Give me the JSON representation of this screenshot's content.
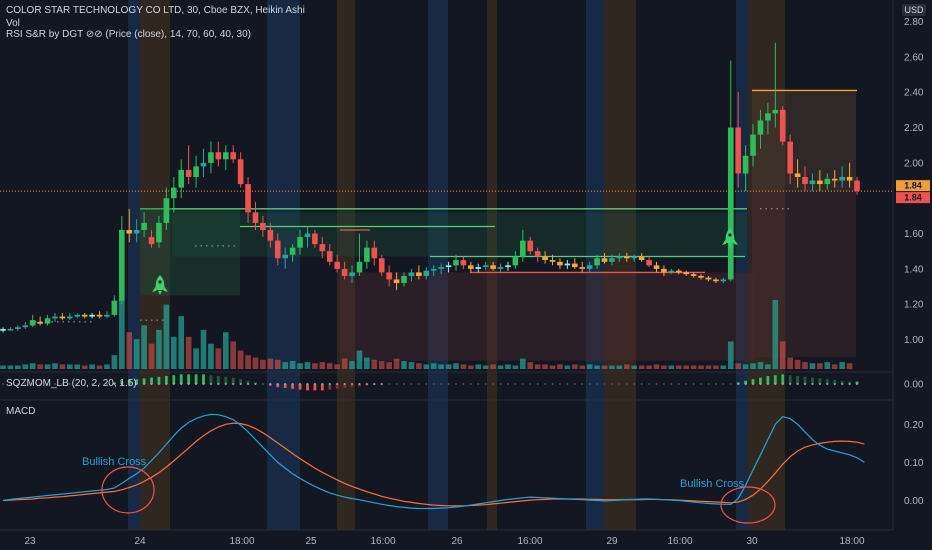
{
  "header": {
    "title": "COLOR STAR TECHNOLOGY CO LTD, 30, Cboe BZX, Heikin Ashi",
    "vol_label": "Vol",
    "rsi_label": "RSI S&R by DGT ⊘⊘ (Price (close), 14, 70, 60, 40, 30)",
    "sqz_label": "SQZMOM_LB (20, 2, 20, 1.5)",
    "macd_label": "MACD"
  },
  "price_axis": {
    "currency": "USD",
    "ticks": [
      "2.80",
      "2.60",
      "2.40",
      "2.20",
      "2.00",
      "1.80",
      "1.60",
      "1.40",
      "1.20",
      "1.00"
    ]
  },
  "price_tags": [
    "1.84",
    "1.84"
  ],
  "sqz_axis": {
    "ticks": [
      "0.00"
    ]
  },
  "macd_axis": {
    "ticks": [
      "0.20",
      "0.10",
      "0.00"
    ]
  },
  "time_axis": {
    "ticks": [
      "23",
      "24",
      "18:00",
      "25",
      "16:00",
      "26",
      "16:00",
      "29",
      "16:00",
      "30",
      "18:00"
    ]
  },
  "annotations": [
    "Bullish Cross",
    "Bullish Cross"
  ],
  "colors": {
    "background": "#131722",
    "up": "#26a69a",
    "down": "#ef5350",
    "up_bright": "#2ebd5a",
    "down_orange": "#f7a637",
    "ha_light": "#8ff0e8",
    "macd": "#22a3d6",
    "signal": "#ff6d3a",
    "band_blue": "#1e3a5f",
    "band_orange": "#4a3520",
    "current_price": "#ef9c3a"
  },
  "chart_data": {
    "type": "candlestick",
    "title": "COLOR STAR TECHNOLOGY CO LTD, 30, Cboe BZX, Heikin Ashi",
    "ylim": [
      0.86,
      2.88
    ],
    "candles": [
      {
        "o": 1.05,
        "h": 1.07,
        "l": 1.04,
        "c": 1.06
      },
      {
        "o": 1.06,
        "h": 1.07,
        "l": 1.05,
        "c": 1.06
      },
      {
        "o": 1.06,
        "h": 1.08,
        "l": 1.05,
        "c": 1.07
      },
      {
        "o": 1.07,
        "h": 1.1,
        "l": 1.06,
        "c": 1.08
      },
      {
        "o": 1.08,
        "h": 1.14,
        "l": 1.07,
        "c": 1.11
      },
      {
        "o": 1.1,
        "h": 1.13,
        "l": 1.08,
        "c": 1.09
      },
      {
        "o": 1.09,
        "h": 1.14,
        "l": 1.08,
        "c": 1.12
      },
      {
        "o": 1.12,
        "h": 1.15,
        "l": 1.1,
        "c": 1.13
      },
      {
        "o": 1.13,
        "h": 1.15,
        "l": 1.11,
        "c": 1.12
      },
      {
        "o": 1.12,
        "h": 1.15,
        "l": 1.11,
        "c": 1.13
      },
      {
        "o": 1.13,
        "h": 1.15,
        "l": 1.12,
        "c": 1.14
      },
      {
        "o": 1.14,
        "h": 1.15,
        "l": 1.12,
        "c": 1.13
      },
      {
        "o": 1.13,
        "h": 1.15,
        "l": 1.12,
        "c": 1.14
      },
      {
        "o": 1.14,
        "h": 1.16,
        "l": 1.12,
        "c": 1.13
      },
      {
        "o": 1.13,
        "h": 1.16,
        "l": 1.12,
        "c": 1.14
      },
      {
        "o": 1.14,
        "h": 1.25,
        "l": 1.13,
        "c": 1.22
      },
      {
        "o": 1.22,
        "h": 1.7,
        "l": 1.2,
        "c": 1.62
      },
      {
        "o": 1.62,
        "h": 1.74,
        "l": 1.55,
        "c": 1.6
      },
      {
        "o": 1.6,
        "h": 1.68,
        "l": 1.55,
        "c": 1.62
      },
      {
        "o": 1.62,
        "h": 1.72,
        "l": 1.58,
        "c": 1.66
      },
      {
        "o": 1.58,
        "h": 1.62,
        "l": 1.52,
        "c": 1.54
      },
      {
        "o": 1.55,
        "h": 1.7,
        "l": 1.52,
        "c": 1.66
      },
      {
        "o": 1.66,
        "h": 1.86,
        "l": 1.62,
        "c": 1.8
      },
      {
        "o": 1.8,
        "h": 1.92,
        "l": 1.72,
        "c": 1.86
      },
      {
        "o": 1.86,
        "h": 2.02,
        "l": 1.8,
        "c": 1.96
      },
      {
        "o": 1.96,
        "h": 2.1,
        "l": 1.88,
        "c": 1.92
      },
      {
        "o": 1.92,
        "h": 2.04,
        "l": 1.86,
        "c": 1.98
      },
      {
        "o": 1.98,
        "h": 2.08,
        "l": 1.92,
        "c": 2.0
      },
      {
        "o": 2.0,
        "h": 2.12,
        "l": 1.94,
        "c": 2.06
      },
      {
        "o": 2.06,
        "h": 2.12,
        "l": 1.98,
        "c": 2.02
      },
      {
        "o": 2.02,
        "h": 2.1,
        "l": 1.96,
        "c": 2.06
      },
      {
        "o": 2.06,
        "h": 2.1,
        "l": 2.0,
        "c": 2.02
      },
      {
        "o": 2.02,
        "h": 2.06,
        "l": 1.86,
        "c": 1.88
      },
      {
        "o": 1.88,
        "h": 1.92,
        "l": 1.66,
        "c": 1.72
      },
      {
        "o": 1.72,
        "h": 1.78,
        "l": 1.62,
        "c": 1.66
      },
      {
        "o": 1.66,
        "h": 1.7,
        "l": 1.58,
        "c": 1.62
      },
      {
        "o": 1.62,
        "h": 1.66,
        "l": 1.52,
        "c": 1.56
      },
      {
        "o": 1.56,
        "h": 1.6,
        "l": 1.42,
        "c": 1.46
      },
      {
        "o": 1.46,
        "h": 1.52,
        "l": 1.4,
        "c": 1.48
      },
      {
        "o": 1.48,
        "h": 1.54,
        "l": 1.44,
        "c": 1.52
      },
      {
        "o": 1.52,
        "h": 1.62,
        "l": 1.48,
        "c": 1.58
      },
      {
        "o": 1.58,
        "h": 1.64,
        "l": 1.52,
        "c": 1.6
      },
      {
        "o": 1.6,
        "h": 1.62,
        "l": 1.52,
        "c": 1.54
      },
      {
        "o": 1.54,
        "h": 1.58,
        "l": 1.46,
        "c": 1.5
      },
      {
        "o": 1.5,
        "h": 1.54,
        "l": 1.42,
        "c": 1.44
      },
      {
        "o": 1.44,
        "h": 1.48,
        "l": 1.38,
        "c": 1.4
      },
      {
        "o": 1.4,
        "h": 1.44,
        "l": 1.34,
        "c": 1.36
      },
      {
        "o": 1.36,
        "h": 1.42,
        "l": 1.32,
        "c": 1.38
      },
      {
        "o": 1.38,
        "h": 1.6,
        "l": 1.36,
        "c": 1.44
      },
      {
        "o": 1.44,
        "h": 1.56,
        "l": 1.4,
        "c": 1.52
      },
      {
        "o": 1.52,
        "h": 1.56,
        "l": 1.42,
        "c": 1.46
      },
      {
        "o": 1.46,
        "h": 1.48,
        "l": 1.36,
        "c": 1.38
      },
      {
        "o": 1.38,
        "h": 1.42,
        "l": 1.3,
        "c": 1.34
      },
      {
        "o": 1.34,
        "h": 1.38,
        "l": 1.28,
        "c": 1.32
      },
      {
        "o": 1.32,
        "h": 1.38,
        "l": 1.3,
        "c": 1.36
      },
      {
        "o": 1.36,
        "h": 1.4,
        "l": 1.33,
        "c": 1.38
      },
      {
        "o": 1.38,
        "h": 1.42,
        "l": 1.34,
        "c": 1.36
      },
      {
        "o": 1.36,
        "h": 1.41,
        "l": 1.34,
        "c": 1.39
      },
      {
        "o": 1.39,
        "h": 1.42,
        "l": 1.36,
        "c": 1.4
      },
      {
        "o": 1.4,
        "h": 1.43,
        "l": 1.37,
        "c": 1.41
      },
      {
        "o": 1.41,
        "h": 1.44,
        "l": 1.38,
        "c": 1.42
      },
      {
        "o": 1.42,
        "h": 1.48,
        "l": 1.39,
        "c": 1.45
      },
      {
        "o": 1.45,
        "h": 1.47,
        "l": 1.4,
        "c": 1.42
      },
      {
        "o": 1.42,
        "h": 1.44,
        "l": 1.38,
        "c": 1.4
      },
      {
        "o": 1.4,
        "h": 1.43,
        "l": 1.38,
        "c": 1.41
      },
      {
        "o": 1.41,
        "h": 1.44,
        "l": 1.39,
        "c": 1.42
      },
      {
        "o": 1.42,
        "h": 1.44,
        "l": 1.39,
        "c": 1.4
      },
      {
        "o": 1.4,
        "h": 1.43,
        "l": 1.38,
        "c": 1.41
      },
      {
        "o": 1.41,
        "h": 1.44,
        "l": 1.39,
        "c": 1.42
      },
      {
        "o": 1.42,
        "h": 1.5,
        "l": 1.4,
        "c": 1.47
      },
      {
        "o": 1.47,
        "h": 1.62,
        "l": 1.44,
        "c": 1.56
      },
      {
        "o": 1.56,
        "h": 1.58,
        "l": 1.48,
        "c": 1.5
      },
      {
        "o": 1.5,
        "h": 1.52,
        "l": 1.44,
        "c": 1.47
      },
      {
        "o": 1.47,
        "h": 1.5,
        "l": 1.43,
        "c": 1.45
      },
      {
        "o": 1.45,
        "h": 1.48,
        "l": 1.42,
        "c": 1.44
      },
      {
        "o": 1.44,
        "h": 1.46,
        "l": 1.4,
        "c": 1.42
      },
      {
        "o": 1.42,
        "h": 1.45,
        "l": 1.4,
        "c": 1.43
      },
      {
        "o": 1.43,
        "h": 1.46,
        "l": 1.4,
        "c": 1.41
      },
      {
        "o": 1.41,
        "h": 1.44,
        "l": 1.38,
        "c": 1.4
      },
      {
        "o": 1.4,
        "h": 1.44,
        "l": 1.38,
        "c": 1.42
      },
      {
        "o": 1.42,
        "h": 1.48,
        "l": 1.4,
        "c": 1.46
      },
      {
        "o": 1.46,
        "h": 1.49,
        "l": 1.43,
        "c": 1.44
      },
      {
        "o": 1.44,
        "h": 1.48,
        "l": 1.42,
        "c": 1.46
      },
      {
        "o": 1.46,
        "h": 1.49,
        "l": 1.44,
        "c": 1.47
      },
      {
        "o": 1.47,
        "h": 1.49,
        "l": 1.44,
        "c": 1.46
      },
      {
        "o": 1.46,
        "h": 1.48,
        "l": 1.44,
        "c": 1.47
      },
      {
        "o": 1.47,
        "h": 1.49,
        "l": 1.44,
        "c": 1.45
      },
      {
        "o": 1.45,
        "h": 1.47,
        "l": 1.41,
        "c": 1.42
      },
      {
        "o": 1.42,
        "h": 1.44,
        "l": 1.38,
        "c": 1.4
      },
      {
        "o": 1.4,
        "h": 1.42,
        "l": 1.36,
        "c": 1.38
      },
      {
        "o": 1.38,
        "h": 1.4,
        "l": 1.37,
        "c": 1.39
      },
      {
        "o": 1.39,
        "h": 1.4,
        "l": 1.37,
        "c": 1.38
      },
      {
        "o": 1.38,
        "h": 1.39,
        "l": 1.36,
        "c": 1.37
      },
      {
        "o": 1.37,
        "h": 1.38,
        "l": 1.35,
        "c": 1.36
      },
      {
        "o": 1.36,
        "h": 1.37,
        "l": 1.34,
        "c": 1.35
      },
      {
        "o": 1.35,
        "h": 1.36,
        "l": 1.33,
        "c": 1.34
      },
      {
        "o": 1.34,
        "h": 1.35,
        "l": 1.32,
        "c": 1.33
      },
      {
        "o": 1.33,
        "h": 1.35,
        "l": 1.32,
        "c": 1.34
      },
      {
        "o": 1.34,
        "h": 2.58,
        "l": 1.33,
        "c": 2.2
      },
      {
        "o": 2.2,
        "h": 2.4,
        "l": 1.86,
        "c": 1.94
      },
      {
        "o": 1.94,
        "h": 2.1,
        "l": 1.84,
        "c": 2.04
      },
      {
        "o": 2.04,
        "h": 2.22,
        "l": 1.98,
        "c": 2.16
      },
      {
        "o": 2.16,
        "h": 2.3,
        "l": 2.08,
        "c": 2.24
      },
      {
        "o": 2.24,
        "h": 2.34,
        "l": 2.16,
        "c": 2.28
      },
      {
        "o": 2.28,
        "h": 2.68,
        "l": 2.2,
        "c": 2.3
      },
      {
        "o": 2.3,
        "h": 2.32,
        "l": 2.1,
        "c": 2.12
      },
      {
        "o": 2.12,
        "h": 2.16,
        "l": 1.88,
        "c": 1.94
      },
      {
        "o": 1.94,
        "h": 2.02,
        "l": 1.86,
        "c": 1.92
      },
      {
        "o": 1.92,
        "h": 1.98,
        "l": 1.84,
        "c": 1.88
      },
      {
        "o": 1.88,
        "h": 1.94,
        "l": 1.84,
        "c": 1.9
      },
      {
        "o": 1.9,
        "h": 1.96,
        "l": 1.84,
        "c": 1.88
      },
      {
        "o": 1.88,
        "h": 1.94,
        "l": 1.85,
        "c": 1.91
      },
      {
        "o": 1.91,
        "h": 1.96,
        "l": 1.86,
        "c": 1.9
      },
      {
        "o": 1.9,
        "h": 1.98,
        "l": 1.86,
        "c": 1.92
      },
      {
        "o": 1.92,
        "h": 2.0,
        "l": 1.86,
        "c": 1.9
      },
      {
        "o": 1.9,
        "h": 1.92,
        "l": 1.82,
        "c": 1.84
      }
    ],
    "volume": [
      0.3,
      0.3,
      0.3,
      0.4,
      0.5,
      0.4,
      0.4,
      0.5,
      0.4,
      0.4,
      0.4,
      0.3,
      0.4,
      0.3,
      0.4,
      1.2,
      6.0,
      3.2,
      2.6,
      3.8,
      2.2,
      3.4,
      5.6,
      2.8,
      4.6,
      2.8,
      1.8,
      3.4,
      2.2,
      1.8,
      3.2,
      2.4,
      1.6,
      1.2,
      1.0,
      0.8,
      0.9,
      0.8,
      0.6,
      0.7,
      0.5,
      0.6,
      0.5,
      0.6,
      0.5,
      0.4,
      0.9,
      0.7,
      1.6,
      1.0,
      0.8,
      0.7,
      0.6,
      0.9,
      0.7,
      0.6,
      0.5,
      0.4,
      0.5,
      0.4,
      0.4,
      0.5,
      0.4,
      0.3,
      0.4,
      0.3,
      0.4,
      0.3,
      0.4,
      0.3,
      0.9,
      0.6,
      0.4,
      0.4,
      0.3,
      0.4,
      0.3,
      0.4,
      0.3,
      0.4,
      0.3,
      0.3,
      0.3,
      0.3,
      0.4,
      0.3,
      0.3,
      0.3,
      0.4,
      0.3,
      0.3,
      0.3,
      0.3,
      0.3,
      0.3,
      0.3,
      0.3,
      0.3,
      2.4,
      0.5,
      0.4,
      0.5,
      0.6,
      0.4,
      6.0,
      2.4,
      1.0,
      0.8,
      0.6,
      0.5,
      0.5,
      0.6,
      0.4,
      0.6,
      0.5
    ],
    "macd": [
      0,
      0.003,
      0.005,
      0.007,
      0.009,
      0.011,
      0.013,
      0.015,
      0.017,
      0.019,
      0.021,
      0.023,
      0.025,
      0.027,
      0.029,
      0.033,
      0.045,
      0.058,
      0.07,
      0.085,
      0.105,
      0.125,
      0.148,
      0.17,
      0.19,
      0.205,
      0.215,
      0.222,
      0.226,
      0.225,
      0.22,
      0.212,
      0.198,
      0.18,
      0.16,
      0.14,
      0.12,
      0.1,
      0.085,
      0.07,
      0.058,
      0.047,
      0.037,
      0.028,
      0.02,
      0.014,
      0.009,
      0.005,
      0.002,
      -0.002,
      -0.006,
      -0.01,
      -0.013,
      -0.016,
      -0.018,
      -0.02,
      -0.021,
      -0.021,
      -0.021,
      -0.02,
      -0.019,
      -0.017,
      -0.015,
      -0.012,
      -0.009,
      -0.006,
      -0.003,
      0,
      0.003,
      0.005,
      0.007,
      0.009,
      0.008,
      0.007,
      0.006,
      0.005,
      0.004,
      0.003,
      0.002,
      0.001,
      0,
      -0.001,
      0,
      0.001,
      0.002,
      0.003,
      0.004,
      0.004,
      0.003,
      0.002,
      0.001,
      0,
      -0.002,
      -0.004,
      -0.006,
      -0.008,
      -0.009,
      -0.01,
      -0.01,
      0.005,
      0.04,
      0.08,
      0.12,
      0.16,
      0.2,
      0.22,
      0.215,
      0.2,
      0.18,
      0.16,
      0.145,
      0.135,
      0.13,
      0.125,
      0.12,
      0.112,
      0.1
    ],
    "signal": [
      0,
      0.001,
      0.002,
      0.003,
      0.004,
      0.006,
      0.007,
      0.009,
      0.01,
      0.012,
      0.014,
      0.016,
      0.018,
      0.02,
      0.022,
      0.024,
      0.028,
      0.034,
      0.041,
      0.05,
      0.061,
      0.073,
      0.088,
      0.104,
      0.121,
      0.138,
      0.155,
      0.17,
      0.183,
      0.193,
      0.2,
      0.203,
      0.202,
      0.197,
      0.189,
      0.178,
      0.165,
      0.151,
      0.137,
      0.123,
      0.11,
      0.097,
      0.085,
      0.074,
      0.064,
      0.054,
      0.045,
      0.037,
      0.03,
      0.023,
      0.017,
      0.011,
      0.006,
      0.002,
      -0.002,
      -0.005,
      -0.008,
      -0.01,
      -0.012,
      -0.013,
      -0.014,
      -0.014,
      -0.014,
      -0.013,
      -0.012,
      -0.011,
      -0.009,
      -0.007,
      -0.005,
      -0.003,
      -0.001,
      0.001,
      0.002,
      0.003,
      0.004,
      0.004,
      0.004,
      0.004,
      0.004,
      0.003,
      0.003,
      0.002,
      0.002,
      0.002,
      0.002,
      0.002,
      0.002,
      0.003,
      0.003,
      0.002,
      0.002,
      0.001,
      0,
      -0.001,
      -0.002,
      -0.003,
      -0.004,
      -0.005,
      -0.006,
      -0.004,
      0.003,
      0.014,
      0.03,
      0.05,
      0.072,
      0.095,
      0.115,
      0.13,
      0.14,
      0.146,
      0.15,
      0.153,
      0.155,
      0.156,
      0.155,
      0.153,
      0.148
    ],
    "sqz": [
      0,
      0,
      0,
      0,
      0,
      0,
      0,
      0,
      0,
      0,
      0,
      0,
      0,
      0,
      0,
      0.02,
      0.04,
      0.05,
      0.06,
      0.07,
      0.08,
      0.09,
      0.1,
      0.11,
      0.12,
      0.12,
      0.12,
      0.12,
      0.11,
      0.1,
      0.09,
      0.08,
      0.06,
      0.04,
      0.02,
      0,
      -0.02,
      -0.04,
      -0.05,
      -0.06,
      -0.07,
      -0.08,
      -0.08,
      -0.08,
      -0.07,
      -0.06,
      -0.05,
      -0.04,
      -0.03,
      -0.02,
      -0.01,
      -0.005,
      0,
      0,
      0,
      0,
      0,
      0,
      0,
      0,
      0,
      0,
      0,
      0,
      0,
      0,
      0,
      0,
      0,
      0,
      0,
      0,
      0,
      0,
      0,
      0,
      0,
      0,
      0,
      0,
      0,
      0,
      0,
      0,
      0,
      0,
      0,
      0,
      0,
      0,
      0,
      0,
      0,
      0,
      0,
      0,
      0,
      0,
      0,
      0.02,
      0.04,
      0.06,
      0.08,
      0.1,
      0.11,
      0.12,
      0.11,
      0.1,
      0.09,
      0.08,
      0.07,
      0.06,
      0.05,
      0.04,
      0.03,
      0.03
    ],
    "time_ticks": [
      "23",
      "24",
      "18:00",
      "25",
      "16:00",
      "26",
      "16:00",
      "29",
      "16:00",
      "30",
      "18:00"
    ],
    "price_levels": [
      1.74,
      1.72,
      1.64,
      1.58,
      1.47,
      1.38,
      2.41,
      1.84
    ]
  }
}
